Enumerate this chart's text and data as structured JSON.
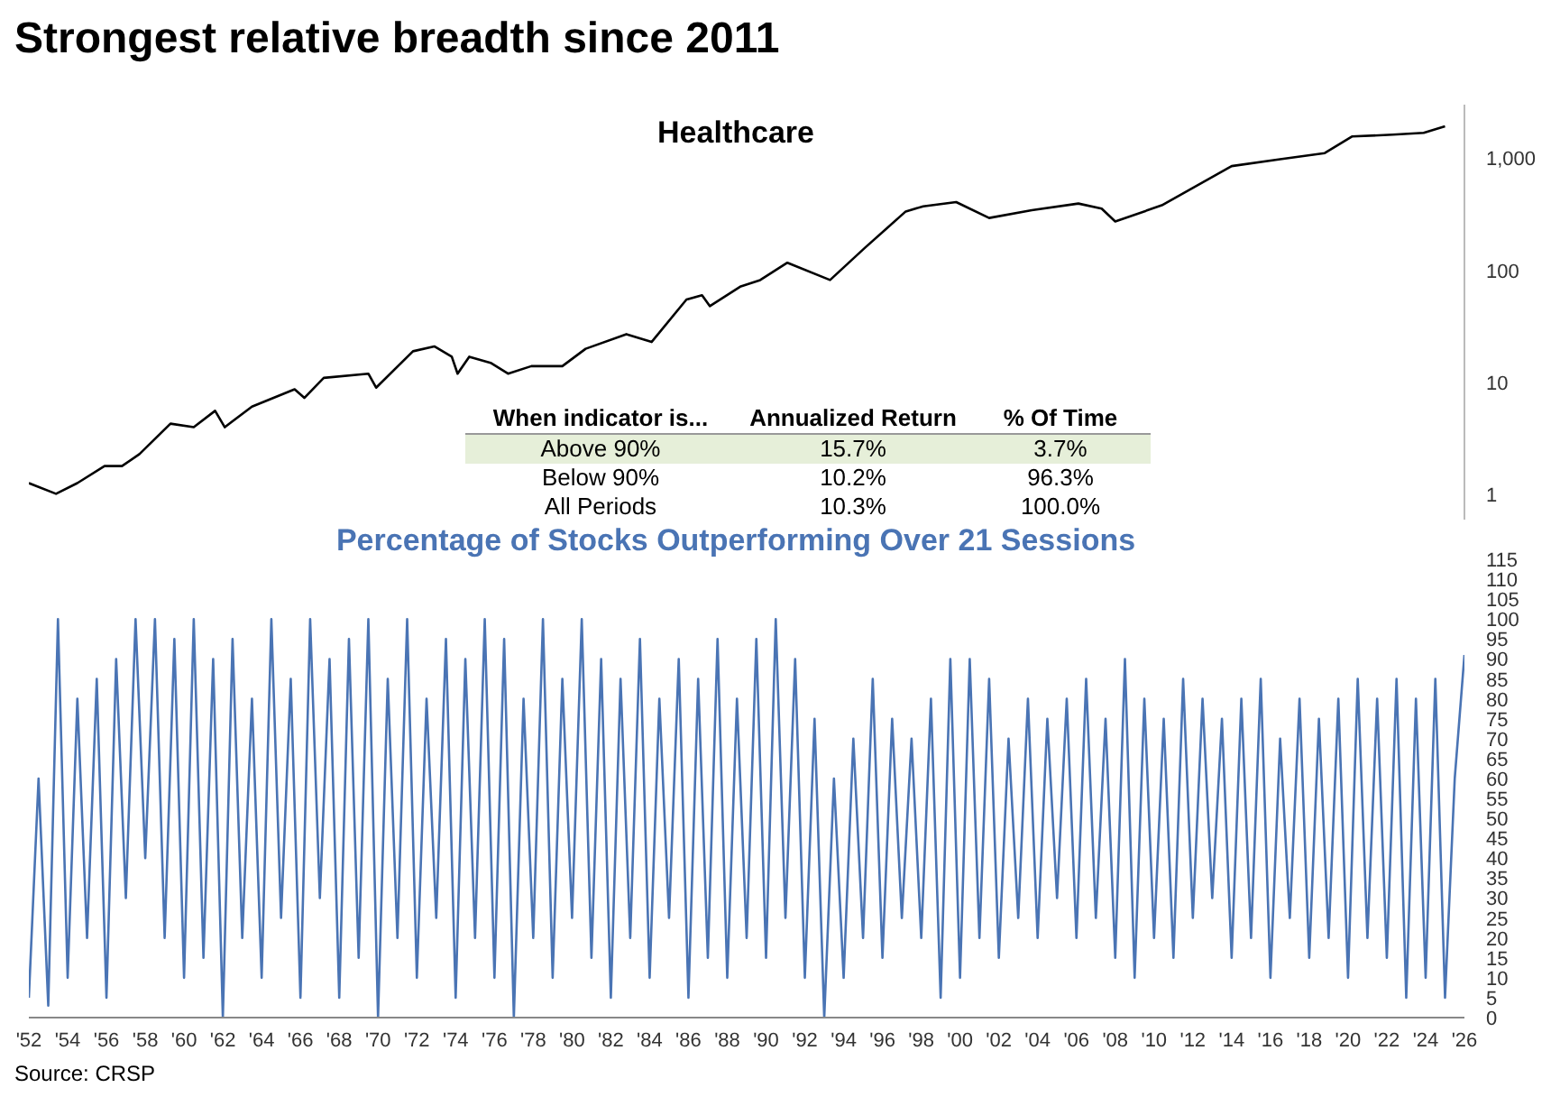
{
  "chart_data": [
    {
      "type": "line",
      "title": "Strongest relative breadth since 2011",
      "subtitle": "Healthcare",
      "log": "y",
      "marker": "none",
      "tick_labels": "y",
      "xlim": [
        1952,
        2026
      ],
      "ylim": [
        0.6,
        3000
      ],
      "yticks": [
        1,
        10,
        100,
        {
          "value": 1000,
          "label": "1,000"
        }
      ],
      "annotations": [
        "When indicator is...",
        "Annualized Return",
        "% Of Time",
        "Above 90%",
        "15.7%",
        "3.7%",
        "Below 90%",
        "10.2%",
        "96.3%",
        "All Periods",
        "10.3%",
        "100.0%"
      ],
      "x": [
        1952,
        1953.4,
        1954.5,
        1955.9,
        1956.8,
        1957.7,
        1959.3,
        1960.5,
        1961.6,
        1962.1,
        1963.5,
        1965.7,
        1966.2,
        1967.2,
        1969.5,
        1969.9,
        1971.8,
        1972.9,
        1973.8,
        1974.1,
        1974.7,
        1975.8,
        1976.7,
        1977.9,
        1979.5,
        1980.7,
        1982.8,
        1984.1,
        1985.9,
        1986.7,
        1987.1,
        1988.7,
        1989.7,
        1991.1,
        1993.3,
        1995.1,
        1997.2,
        1998.1,
        1999.8,
        2001.5,
        2003.7,
        2006.1,
        2007.3,
        2008,
        2010.4,
        2014,
        2016.5,
        2018.8,
        2020.2,
        2022.3,
        2023.9,
        2025
      ],
      "series": [
        {
          "color": "#000000",
          "values": [
            1.27,
            1.02,
            1.27,
            1.8,
            1.8,
            2.3,
            4.3,
            4,
            5.6,
            4,
            6.1,
            8.7,
            7.3,
            11,
            12,
            9,
            19,
            21,
            17,
            12,
            17,
            15,
            12,
            14,
            14,
            20,
            27,
            23,
            55,
            60,
            48,
            72,
            82,
            117,
            82,
            159,
            335,
            372,
            406,
            293,
            344,
            394,
            355,
            273,
            380,
            850,
            980,
            1110,
            1560,
            1620,
            1680,
            1920
          ]
        }
      ]
    },
    {
      "type": "line",
      "subtitle": "Percentage of Stocks Outperforming Over 21 Sessions",
      "marker": "none",
      "xlim": [
        1952,
        2026
      ],
      "ylim": [
        0,
        115
      ],
      "xticks": [
        {
          "value": 1952,
          "label": "'52"
        },
        {
          "value": 1954,
          "label": "'54"
        },
        {
          "value": 1956,
          "label": "'56"
        },
        {
          "value": 1958,
          "label": "'58"
        },
        {
          "value": 1960,
          "label": "'60"
        },
        {
          "value": 1962,
          "label": "'62"
        },
        {
          "value": 1964,
          "label": "'64"
        },
        {
          "value": 1966,
          "label": "'66"
        },
        {
          "value": 1968,
          "label": "'68"
        },
        {
          "value": 1970,
          "label": "'70"
        },
        {
          "value": 1972,
          "label": "'72"
        },
        {
          "value": 1974,
          "label": "'74"
        },
        {
          "value": 1976,
          "label": "'76"
        },
        {
          "value": 1978,
          "label": "'78"
        },
        {
          "value": 1980,
          "label": "'80"
        },
        {
          "value": 1982,
          "label": "'82"
        },
        {
          "value": 1984,
          "label": "'84"
        },
        {
          "value": 1986,
          "label": "'86"
        },
        {
          "value": 1988,
          "label": "'88"
        },
        {
          "value": 1990,
          "label": "'90"
        },
        {
          "value": 1992,
          "label": "'92"
        },
        {
          "value": 1994,
          "label": "'94"
        },
        {
          "value": 1996,
          "label": "'96"
        },
        {
          "value": 1998,
          "label": "'98"
        },
        {
          "value": 2000,
          "label": "'00"
        },
        {
          "value": 2002,
          "label": "'02"
        },
        {
          "value": 2004,
          "label": "'04"
        },
        {
          "value": 2006,
          "label": "'06"
        },
        {
          "value": 2008,
          "label": "'08"
        },
        {
          "value": 2010,
          "label": "'10"
        },
        {
          "value": 2012,
          "label": "'12"
        },
        {
          "value": 2014,
          "label": "'14"
        },
        {
          "value": 2016,
          "label": "'16"
        },
        {
          "value": 2018,
          "label": "'18"
        },
        {
          "value": 2020,
          "label": "'20"
        },
        {
          "value": 2022,
          "label": "'22"
        },
        {
          "value": 2024,
          "label": "'24"
        },
        {
          "value": 2026,
          "label": "'26"
        }
      ],
      "yticks": [
        0,
        5,
        10,
        15,
        20,
        25,
        30,
        35,
        40,
        45,
        50,
        55,
        60,
        65,
        70,
        75,
        80,
        85,
        90,
        95,
        100,
        105,
        110,
        115
      ],
      "annotations": [
        "Source: CRSP"
      ],
      "x": [
        1952,
        1952.5,
        1953,
        1953.5,
        1954,
        1954.5,
        1955,
        1955.5,
        1956,
        1956.5,
        1957,
        1957.5,
        1958,
        1958.5,
        1959,
        1959.5,
        1960,
        1960.5,
        1961,
        1961.5,
        1962,
        1962.5,
        1963,
        1963.5,
        1964,
        1964.5,
        1965,
        1965.5,
        1966,
        1966.5,
        1967,
        1967.5,
        1968,
        1968.5,
        1969,
        1969.5,
        1970,
        1970.5,
        1971,
        1971.5,
        1972,
        1972.5,
        1973,
        1973.5,
        1974,
        1974.5,
        1975,
        1975.5,
        1976,
        1976.5,
        1977,
        1977.5,
        1978,
        1978.5,
        1979,
        1979.5,
        1980,
        1980.5,
        1981,
        1981.5,
        1982,
        1982.5,
        1983,
        1983.5,
        1984,
        1984.5,
        1985,
        1985.5,
        1986,
        1986.5,
        1987,
        1987.5,
        1988,
        1988.5,
        1989,
        1989.5,
        1990,
        1990.5,
        1991,
        1991.5,
        1992,
        1992.5,
        1993,
        1993.5,
        1994,
        1994.5,
        1995,
        1995.5,
        1996,
        1996.5,
        1997,
        1997.5,
        1998,
        1998.5,
        1999,
        1999.5,
        2000,
        2000.5,
        2001,
        2001.5,
        2002,
        2002.5,
        2003,
        2003.5,
        2004,
        2004.5,
        2005,
        2005.5,
        2006,
        2006.5,
        2007,
        2007.5,
        2008,
        2008.5,
        2009,
        2009.5,
        2010,
        2010.5,
        2011,
        2011.5,
        2012,
        2012.5,
        2013,
        2013.5,
        2014,
        2014.5,
        2015,
        2015.5,
        2016,
        2016.5,
        2017,
        2017.5,
        2018,
        2018.5,
        2019,
        2019.5,
        2020,
        2020.5,
        2021,
        2021.5,
        2022,
        2022.5,
        2023,
        2023.5,
        2024,
        2024.5,
        2025,
        2025.5,
        2026
      ],
      "series": [
        {
          "color": "#4a74b4",
          "values": [
            5,
            60,
            3,
            100,
            10,
            80,
            20,
            85,
            5,
            90,
            30,
            100,
            40,
            100,
            20,
            95,
            10,
            100,
            15,
            90,
            0,
            95,
            20,
            80,
            10,
            100,
            25,
            85,
            5,
            100,
            30,
            90,
            5,
            95,
            15,
            100,
            0,
            85,
            20,
            100,
            10,
            80,
            25,
            95,
            5,
            90,
            20,
            100,
            10,
            95,
            0,
            80,
            20,
            100,
            10,
            85,
            25,
            100,
            15,
            90,
            5,
            85,
            20,
            95,
            10,
            80,
            25,
            90,
            5,
            85,
            15,
            95,
            10,
            80,
            20,
            95,
            15,
            100,
            25,
            90,
            10,
            75,
            0,
            60,
            10,
            70,
            20,
            85,
            15,
            75,
            25,
            70,
            20,
            80,
            5,
            90,
            10,
            90,
            20,
            85,
            15,
            70,
            25,
            80,
            20,
            75,
            30,
            80,
            20,
            85,
            25,
            75,
            15,
            90,
            10,
            80,
            20,
            75,
            15,
            85,
            25,
            80,
            30,
            75,
            15,
            80,
            20,
            85,
            10,
            70,
            25,
            80,
            15,
            75,
            20,
            80,
            10,
            85,
            20,
            80,
            15,
            85,
            5,
            80,
            10,
            85,
            5,
            60,
            91
          ]
        }
      ]
    }
  ]
}
